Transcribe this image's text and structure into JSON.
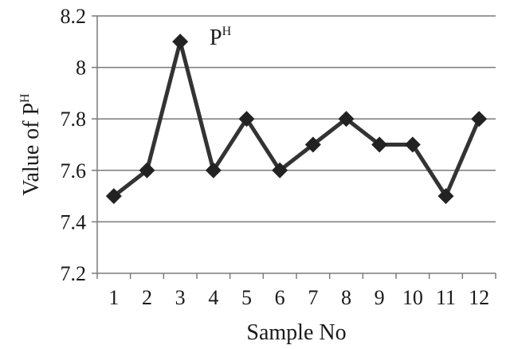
{
  "chart_data": {
    "type": "line",
    "title": "",
    "xlabel": "Sample No",
    "ylabel": "Value of P",
    "ylabel_superscript": "H",
    "ylim": [
      7.2,
      8.2
    ],
    "yticks": [
      7.2,
      7.4,
      7.6,
      7.8,
      8.0,
      8.2
    ],
    "ytick_labels": [
      "7.2",
      "7.4",
      "7.6",
      "7.8",
      "8",
      "8.2"
    ],
    "categories": [
      "1",
      "2",
      "3",
      "4",
      "5",
      "6",
      "7",
      "8",
      "9",
      "10",
      "11",
      "12"
    ],
    "grid": true,
    "series": [
      {
        "name": "P",
        "name_superscript": "H",
        "values": [
          7.5,
          7.6,
          8.1,
          7.6,
          7.8,
          7.6,
          7.7,
          7.8,
          7.7,
          7.7,
          7.5,
          7.8
        ],
        "color": "#333333",
        "marker": "diamond"
      }
    ]
  }
}
